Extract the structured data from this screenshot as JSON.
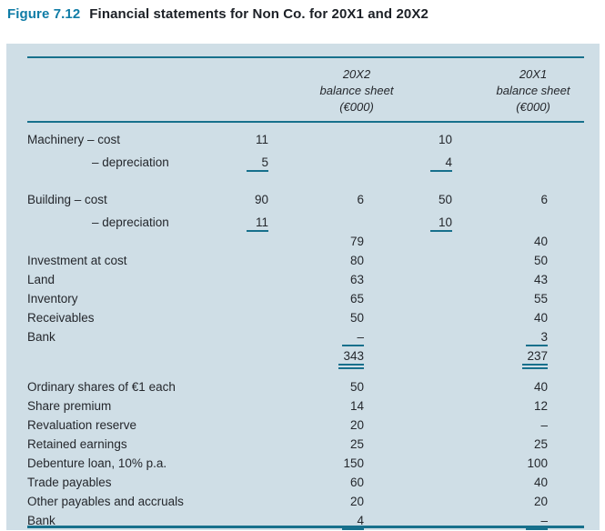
{
  "figure": {
    "label": "Figure 7.12",
    "title": "Financial statements for Non Co. for 20X1 and 20X2"
  },
  "colors": {
    "panel_background": "#cfdee6",
    "rule_teal": "#17708c",
    "figure_label_teal": "#0f7ca6",
    "text": "#24272c"
  },
  "table": {
    "col_headers": [
      {
        "year": "20X2",
        "line2": "balance sheet",
        "line3": "(€000)"
      },
      {
        "year": "20X1",
        "line2": "balance sheet",
        "line3": "(€000)"
      }
    ],
    "rows": [
      {
        "label": "Machinery – cost",
        "c1": "11",
        "c3": "10"
      },
      {
        "label": "– depreciation",
        "c1": "5",
        "c3": "4"
      },
      {
        "label": "Building – cost",
        "c1": "90",
        "c2": "6",
        "c3": "50",
        "c4": "6"
      },
      {
        "label": "– depreciation",
        "c1": "11",
        "c3": "10"
      },
      {
        "c2": "79",
        "c4": "40"
      },
      {
        "label": "Investment at cost",
        "c2": "80",
        "c4": "50"
      },
      {
        "label": "Land",
        "c2": "63",
        "c4": "43"
      },
      {
        "label": "Inventory",
        "c2": "65",
        "c4": "55"
      },
      {
        "label": "Receivables",
        "c2": "50",
        "c4": "40"
      },
      {
        "label": "Bank",
        "c2": "–",
        "c4": "3"
      },
      {
        "c2": "343",
        "c4": "237"
      },
      {
        "label": "Ordinary shares of €1 each",
        "c2": "50",
        "c4": "40"
      },
      {
        "label": "Share premium",
        "c2": "14",
        "c4": "12"
      },
      {
        "label": "Revaluation reserve",
        "c2": "20",
        "c4": "–"
      },
      {
        "label": "Retained earnings",
        "c2": "25",
        "c4": "25"
      },
      {
        "label": "Debenture loan, 10% p.a.",
        "c2": "150",
        "c4": "100"
      },
      {
        "label": "Trade payables",
        "c2": "60",
        "c4": "40"
      },
      {
        "label": "Other payables and accruals",
        "c2": "20",
        "c4": "20"
      },
      {
        "label": "Bank",
        "c2": "4",
        "c4": "–"
      }
    ]
  }
}
